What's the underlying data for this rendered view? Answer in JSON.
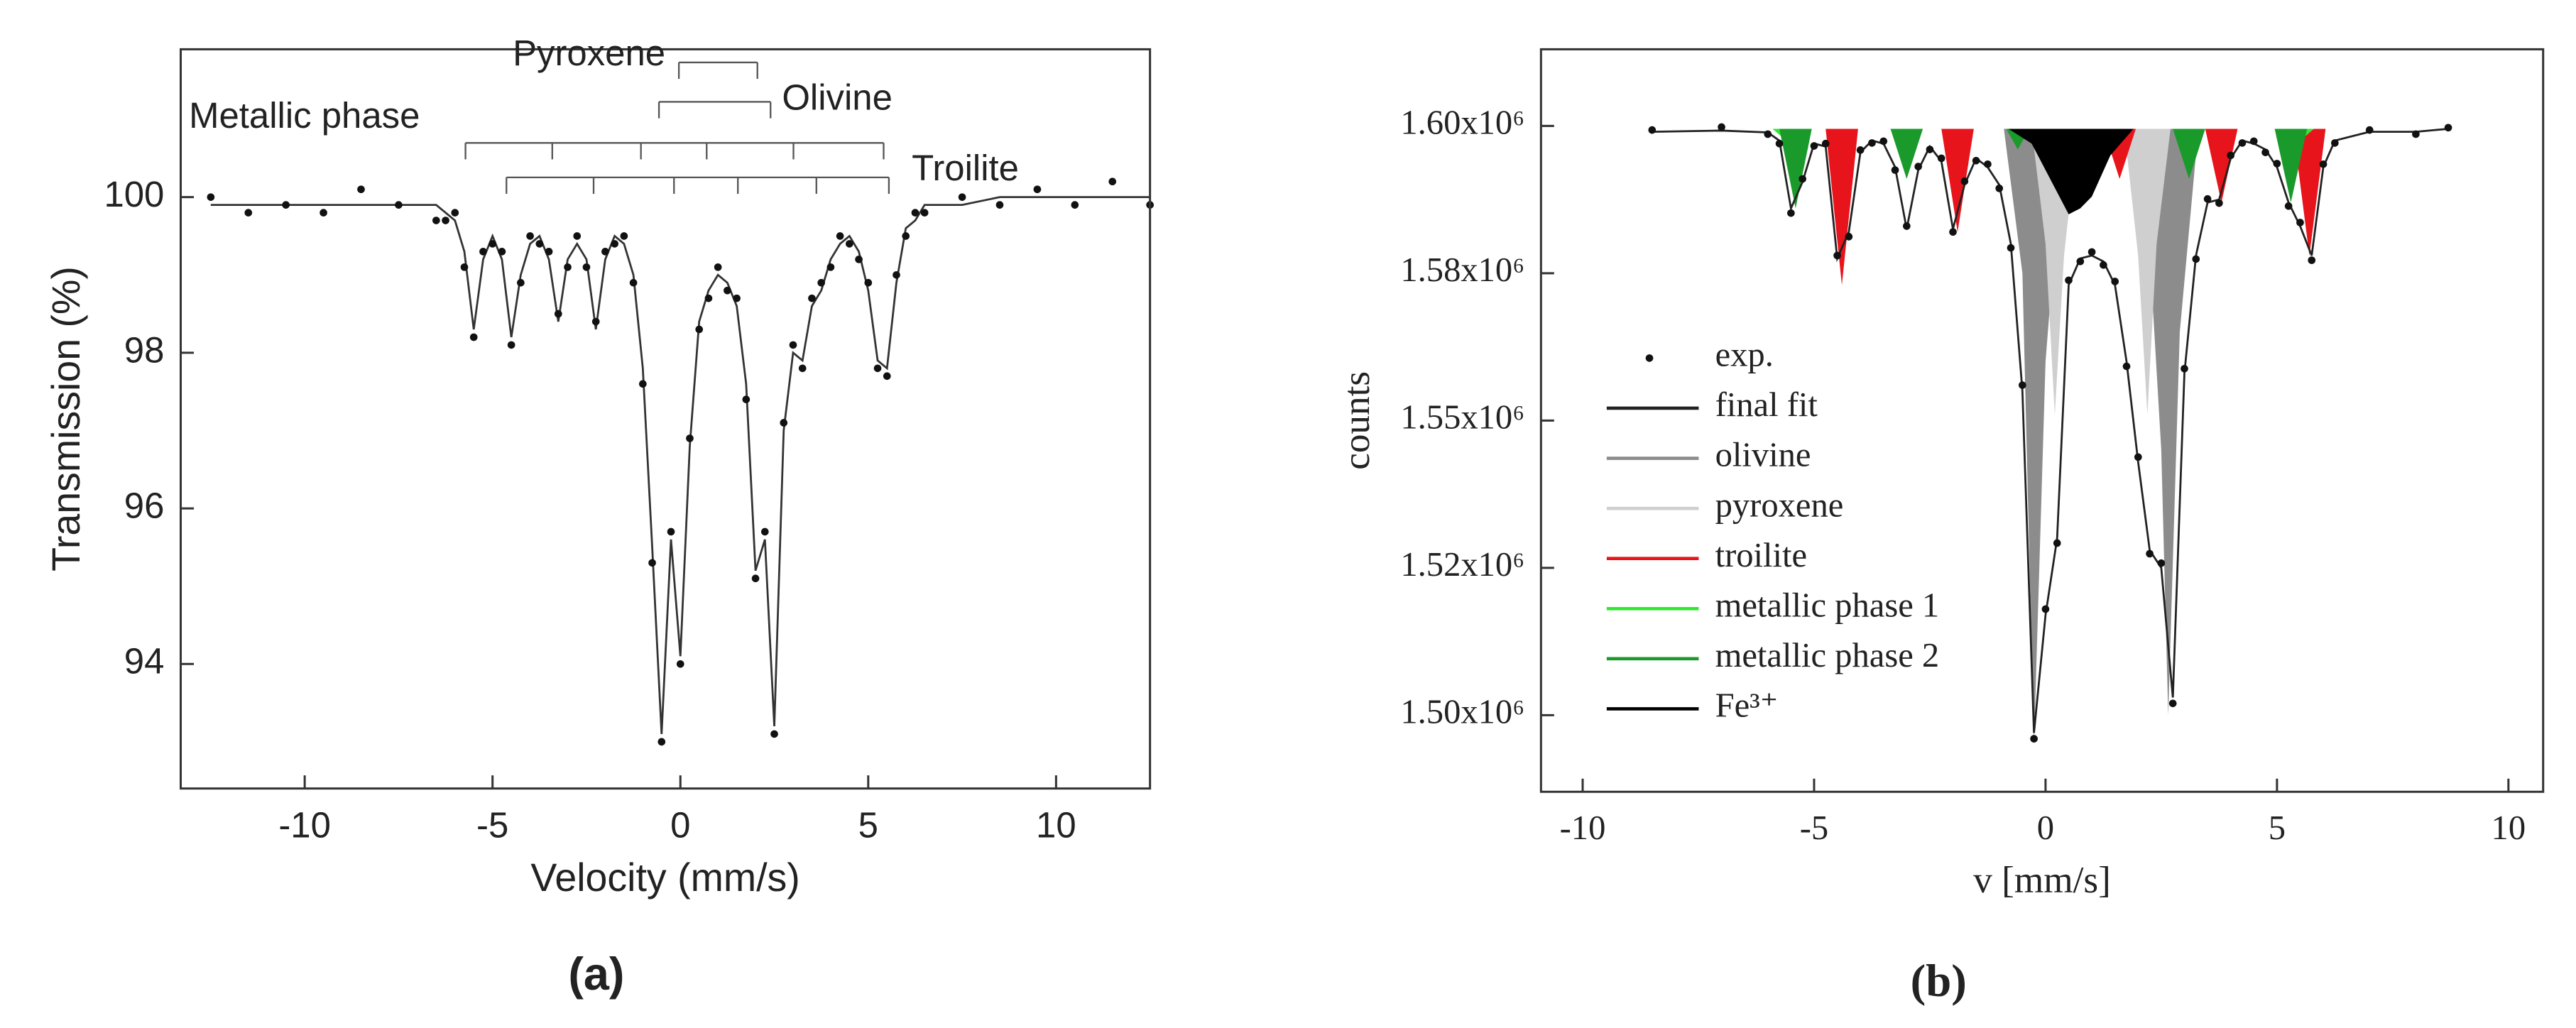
{
  "chart_data": [
    {
      "type": "line",
      "xlabel": "Velocity (mm/s)",
      "ylabel": "Transmission (%)",
      "caption": "(a)",
      "xlim": [
        -13.3,
        12.5
      ],
      "ylim": [
        92.4,
        101.9
      ],
      "xticks": [
        -10,
        -5,
        0,
        5,
        10
      ],
      "yticks": [
        94,
        96,
        98,
        100
      ],
      "annotations": [
        {
          "text": "Metallic phase",
          "positions": [
            -5.72,
            -3.41,
            -1.05,
            0.7,
            3.01,
            5.41
          ]
        },
        {
          "text": "Pyroxene",
          "positions": [
            -0.04,
            2.05
          ]
        },
        {
          "text": "Olivine",
          "positions": [
            -0.57,
            2.4
          ]
        },
        {
          "text": "Troilite",
          "positions": [
            -4.63,
            -2.31,
            -0.17,
            1.53,
            3.62,
            5.55
          ]
        }
      ],
      "x": [
        -12.5,
        -11.5,
        -10.5,
        -9.5,
        -8.5,
        -7.5,
        -6.5,
        -6.25,
        -6.0,
        -5.75,
        -5.5,
        -5.25,
        -5.0,
        -4.75,
        -4.5,
        -4.25,
        -4.0,
        -3.75,
        -3.5,
        -3.25,
        -3.0,
        -2.75,
        -2.5,
        -2.25,
        -2.0,
        -1.75,
        -1.5,
        -1.25,
        -1.0,
        -0.75,
        -0.5,
        -0.25,
        0.0,
        0.25,
        0.5,
        0.75,
        1.0,
        1.25,
        1.5,
        1.75,
        2.0,
        2.25,
        2.5,
        2.75,
        3.0,
        3.25,
        3.5,
        3.75,
        4.0,
        4.25,
        4.5,
        4.75,
        5.0,
        5.25,
        5.5,
        5.75,
        6.0,
        6.25,
        6.5,
        7.5,
        8.5,
        9.5,
        10.5,
        11.5,
        12.5
      ],
      "series": [
        {
          "mode": "line",
          "color": "#333333",
          "values": [
            99.9,
            99.9,
            99.9,
            99.9,
            99.9,
            99.9,
            99.9,
            99.8,
            99.7,
            99.3,
            98.3,
            99.2,
            99.5,
            99.2,
            98.2,
            99.0,
            99.4,
            99.5,
            99.2,
            98.4,
            99.2,
            99.4,
            99.2,
            98.3,
            99.2,
            99.5,
            99.4,
            99.0,
            97.8,
            95.5,
            93.1,
            95.6,
            94.1,
            96.8,
            98.4,
            98.8,
            99.0,
            98.9,
            98.6,
            97.6,
            95.2,
            95.6,
            93.2,
            97.0,
            98.0,
            97.9,
            98.6,
            98.8,
            99.2,
            99.4,
            99.5,
            99.3,
            98.8,
            97.9,
            97.8,
            98.9,
            99.6,
            99.7,
            99.9,
            99.9,
            100.0,
            100.0,
            100.0,
            100.0,
            100.0
          ]
        },
        {
          "mode": "markers",
          "color": "#111111",
          "values": [
            100.0,
            99.8,
            99.9,
            99.8,
            100.1,
            99.9,
            99.7,
            99.7,
            99.8,
            99.1,
            98.2,
            99.3,
            99.4,
            99.3,
            98.1,
            98.9,
            99.5,
            99.4,
            99.3,
            98.5,
            99.1,
            99.5,
            99.1,
            98.4,
            99.3,
            99.4,
            99.5,
            98.9,
            97.6,
            95.3,
            93.0,
            95.7,
            94.0,
            96.9,
            98.3,
            98.7,
            99.1,
            98.8,
            98.7,
            97.4,
            95.1,
            95.7,
            93.1,
            97.1,
            98.1,
            97.8,
            98.7,
            98.9,
            99.1,
            99.5,
            99.4,
            99.2,
            98.9,
            97.8,
            97.7,
            99.0,
            99.5,
            99.8,
            99.8,
            100.0,
            99.9,
            100.1,
            99.9,
            100.2,
            99.9
          ]
        }
      ]
    },
    {
      "type": "line",
      "xlabel": "v [mm/s]",
      "ylabel": "counts",
      "caption": "(b)",
      "xlim": [
        -10.9,
        10.75
      ],
      "ylim": [
        1487000,
        1613000
      ],
      "xticks": [
        -10,
        -5,
        0,
        5,
        10
      ],
      "yticks": [
        {
          "value": 1600000,
          "label": "1.60x10⁶"
        },
        {
          "value": 1575000,
          "label": "1.58x10⁶"
        },
        {
          "value": 1550000,
          "label": "1.55x10⁶"
        },
        {
          "value": 1525000,
          "label": "1.52x10⁶"
        },
        {
          "value": 1500000,
          "label": "1.50x10⁶"
        }
      ],
      "x": [
        -8.5,
        -7.0,
        -6.0,
        -5.75,
        -5.5,
        -5.25,
        -5.0,
        -4.75,
        -4.5,
        -4.25,
        -4.0,
        -3.75,
        -3.5,
        -3.25,
        -3.0,
        -2.75,
        -2.5,
        -2.25,
        -2.0,
        -1.75,
        -1.5,
        -1.25,
        -1.0,
        -0.75,
        -0.5,
        -0.25,
        0.0,
        0.25,
        0.5,
        0.75,
        1.0,
        1.25,
        1.5,
        1.75,
        2.0,
        2.25,
        2.5,
        2.75,
        3.0,
        3.25,
        3.5,
        3.75,
        4.0,
        4.25,
        4.5,
        4.75,
        5.0,
        5.25,
        5.5,
        5.75,
        6.0,
        6.25,
        7.0,
        8.0,
        8.7
      ],
      "series": [
        {
          "name": "exp.",
          "mode": "markers",
          "color": "#111111",
          "values": [
            1599300,
            1599800,
            1598600,
            1597000,
            1585200,
            1591000,
            1596600,
            1597000,
            1578000,
            1581200,
            1595900,
            1597100,
            1597400,
            1592500,
            1583000,
            1593100,
            1596000,
            1594500,
            1582000,
            1590600,
            1594100,
            1593500,
            1589400,
            1579300,
            1556000,
            1496000,
            1518000,
            1529200,
            1573800,
            1577000,
            1578600,
            1576400,
            1573600,
            1559200,
            1543800,
            1527400,
            1525800,
            1502000,
            1558800,
            1577400,
            1587600,
            1586900,
            1595000,
            1597100,
            1597400,
            1595500,
            1593600,
            1586400,
            1583600,
            1577200,
            1593500,
            1597100,
            1599300,
            1598600,
            1599700
          ]
        },
        {
          "name": "final fit",
          "mode": "line",
          "color": "#222222",
          "values": [
            1599000,
            1599200,
            1598900,
            1597500,
            1586000,
            1590500,
            1597000,
            1596500,
            1577500,
            1582000,
            1595500,
            1597500,
            1597000,
            1593000,
            1582500,
            1592500,
            1596500,
            1594000,
            1582500,
            1590000,
            1594500,
            1593000,
            1590000,
            1580000,
            1555000,
            1497000,
            1517000,
            1530000,
            1573000,
            1577500,
            1578000,
            1577000,
            1573000,
            1560000,
            1543000,
            1528000,
            1525000,
            1503000,
            1558000,
            1578000,
            1587000,
            1587500,
            1594500,
            1597500,
            1597000,
            1596000,
            1593000,
            1587000,
            1583000,
            1578000,
            1593000,
            1597500,
            1599000,
            1599000,
            1599500
          ]
        },
        {
          "name": "olivine",
          "mode": "area",
          "color": "#8c8c8c",
          "x": [
            -0.9,
            -0.5,
            -0.25,
            0.0,
            0.3,
            0.6,
            1.8,
            2.2,
            2.5,
            2.65,
            2.9,
            3.3
          ],
          "values": [
            1599500,
            1575000,
            1495000,
            1560000,
            1590000,
            1599500,
            1599500,
            1585000,
            1545000,
            1500000,
            1565000,
            1599500
          ]
        },
        {
          "name": "pyroxene",
          "mode": "area",
          "color": "#cfcfcf",
          "x": [
            -0.3,
            0.0,
            0.2,
            0.4,
            0.7,
            1.7,
            2.0,
            2.2,
            2.4,
            2.7
          ],
          "values": [
            1599500,
            1580000,
            1551000,
            1578000,
            1599500,
            1599500,
            1578000,
            1551000,
            1580000,
            1599500
          ]
        },
        {
          "name": "troilite",
          "mode": "area",
          "color": "#e8141b",
          "x": [
            -4.75,
            -4.4,
            -4.05,
            -2.25,
            -1.9,
            -1.55,
            1.25,
            1.6,
            1.95,
            3.45,
            3.8,
            4.15,
            5.35,
            5.7,
            6.05
          ],
          "values": [
            1599500,
            1573000,
            1599500,
            1599500,
            1582000,
            1599500,
            1599500,
            1591000,
            1599500,
            1599500,
            1587000,
            1599500,
            1599500,
            1578000,
            1599500
          ]
        },
        {
          "name": "metallic phase 1",
          "mode": "area",
          "color": "#33e633",
          "x": [
            -5.9,
            -5.6,
            -5.3,
            5.2,
            5.5,
            5.8
          ],
          "values": [
            1599500,
            1597500,
            1599500,
            1599500,
            1597500,
            1599500
          ]
        },
        {
          "name": "metallic phase 2",
          "mode": "area",
          "color": "#1a9a2a",
          "x": [
            -5.75,
            -5.4,
            -5.05,
            -3.35,
            -3.0,
            -2.65,
            -0.85,
            -0.6,
            -0.35,
            2.75,
            3.1,
            3.45,
            4.95,
            5.3,
            5.65
          ],
          "values": [
            1599500,
            1586000,
            1599500,
            1599500,
            1591000,
            1599500,
            1599500,
            1596000,
            1599500,
            1599500,
            1591000,
            1599500,
            1599500,
            1587000,
            1599500
          ]
        },
        {
          "name": "Fe³⁺",
          "mode": "area",
          "color": "#000000",
          "x": [
            -0.8,
            -0.3,
            0.1,
            0.5,
            0.75,
            1.0,
            1.4,
            1.9
          ],
          "values": [
            1599500,
            1597000,
            1591000,
            1585000,
            1586000,
            1588000,
            1595000,
            1599500
          ]
        }
      ]
    }
  ]
}
